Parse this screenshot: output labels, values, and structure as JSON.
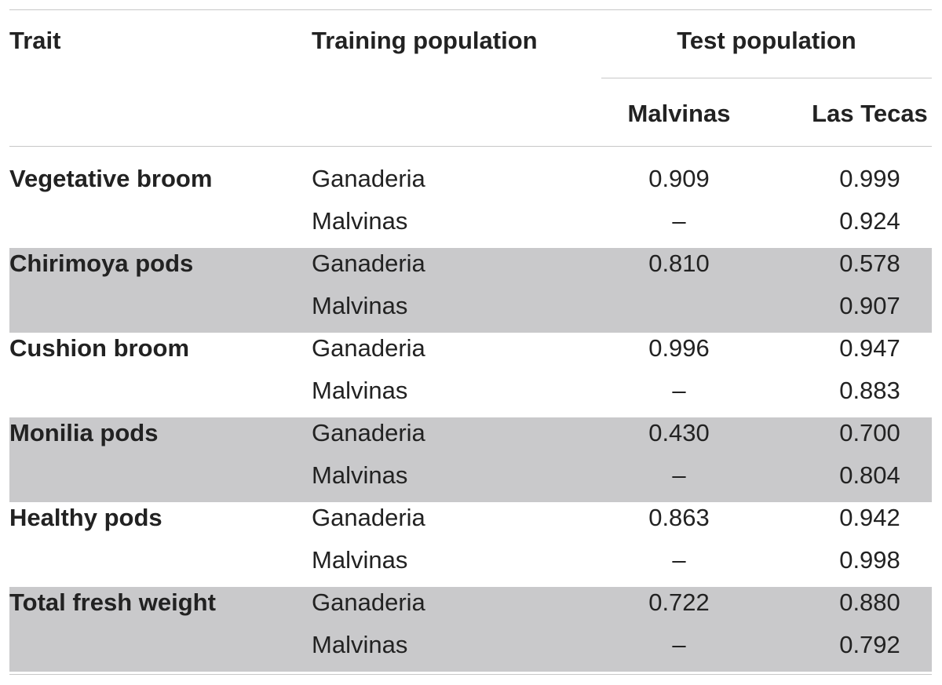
{
  "headers": {
    "trait": "Trait",
    "training": "Training population",
    "test": "Test population",
    "malvinas": "Malvinas",
    "las_tecas": "Las Tecas"
  },
  "rows": [
    {
      "trait": "Vegetative broom",
      "shaded": false,
      "entries": [
        {
          "training": "Ganaderia",
          "malvinas": "0.909",
          "las_tecas": "0.999"
        },
        {
          "training": "Malvinas",
          "malvinas": "–",
          "las_tecas": "0.924"
        }
      ]
    },
    {
      "trait": "Chirimoya pods",
      "shaded": true,
      "entries": [
        {
          "training": "Ganaderia",
          "malvinas": "0.810",
          "las_tecas": "0.578"
        },
        {
          "training": "Malvinas",
          "malvinas": "",
          "las_tecas": "0.907"
        }
      ]
    },
    {
      "trait": "Cushion broom",
      "shaded": false,
      "entries": [
        {
          "training": "Ganaderia",
          "malvinas": "0.996",
          "las_tecas": "0.947"
        },
        {
          "training": "Malvinas",
          "malvinas": "–",
          "las_tecas": "0.883"
        }
      ]
    },
    {
      "trait": "Monilia pods",
      "shaded": true,
      "entries": [
        {
          "training": "Ganaderia",
          "malvinas": "0.430",
          "las_tecas": "0.700"
        },
        {
          "training": "Malvinas",
          "malvinas": "–",
          "las_tecas": "0.804"
        }
      ]
    },
    {
      "trait": "Healthy pods",
      "shaded": false,
      "entries": [
        {
          "training": "Ganaderia",
          "malvinas": "0.863",
          "las_tecas": "0.942"
        },
        {
          "training": "Malvinas",
          "malvinas": "–",
          "las_tecas": "0.998"
        }
      ]
    },
    {
      "trait": "Total fresh weight",
      "shaded": true,
      "entries": [
        {
          "training": "Ganaderia",
          "malvinas": "0.722",
          "las_tecas": "0.880"
        },
        {
          "training": "Malvinas",
          "malvinas": "–",
          "las_tecas": "0.792"
        }
      ]
    }
  ],
  "colors": {
    "shade": "#c9c9cb",
    "rule": "#c8c8c8",
    "text": "#222222"
  }
}
